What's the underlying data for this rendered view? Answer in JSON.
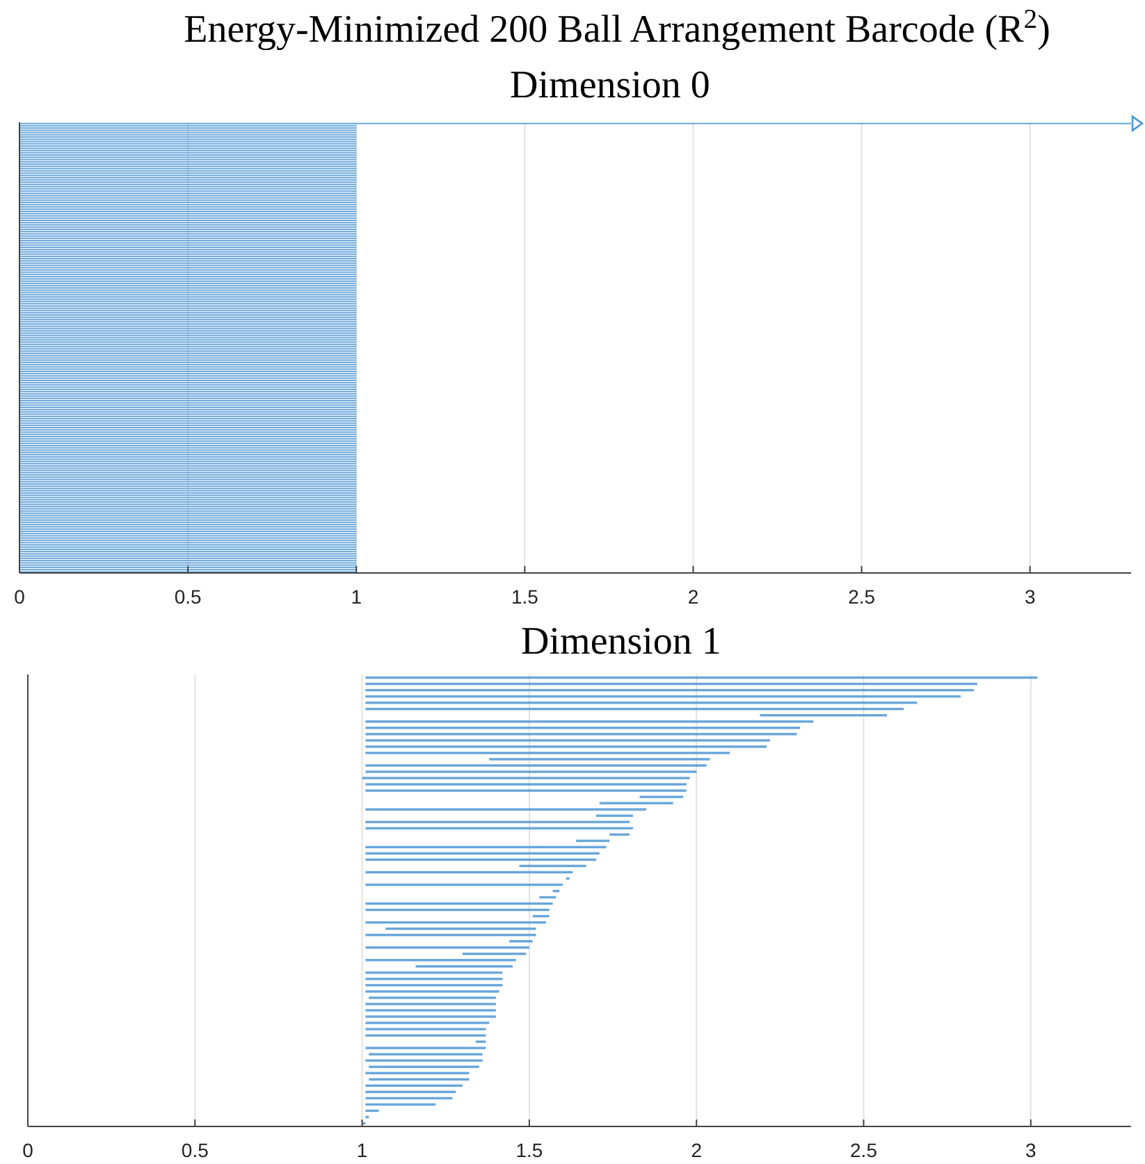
{
  "chart_data": [
    {
      "type": "bar",
      "orientation": "horizontal",
      "title": "Energy-Minimized 200 Ball Arrangement Barcode (R$^{2}$)",
      "subtitle": "Dimension 0",
      "color": "#4f97d4",
      "xlim": [
        0,
        3.3
      ],
      "xticks": [
        0,
        0.5,
        1,
        1.5,
        2,
        2.5,
        3
      ],
      "grid": "x",
      "tick_labels": "x",
      "categories": [
        null,
        null,
        null,
        null,
        null,
        null,
        null,
        null,
        null,
        null,
        null,
        null,
        null,
        null,
        null,
        null,
        null,
        null,
        null,
        null,
        null,
        null,
        null,
        null,
        null,
        null,
        null,
        null,
        null,
        null,
        null,
        null,
        null,
        null,
        null,
        null,
        null,
        null,
        null,
        null,
        null,
        null,
        null,
        null,
        null,
        null,
        null,
        null,
        null,
        null,
        null,
        null,
        null,
        null,
        null,
        null,
        null,
        null,
        null,
        null,
        null,
        null,
        null,
        null,
        null,
        null,
        null,
        null,
        null,
        null,
        null,
        null,
        null,
        null,
        null,
        null,
        null,
        null,
        null,
        null,
        null,
        null,
        null,
        null,
        null,
        null,
        null,
        null,
        null,
        null,
        null,
        null,
        null,
        null,
        null,
        null,
        null,
        null,
        null,
        null,
        null,
        null,
        null,
        null,
        null,
        null,
        null,
        null,
        null,
        null,
        null,
        null,
        null,
        null,
        null,
        null,
        null,
        null,
        null,
        null,
        null,
        null,
        null,
        null,
        null,
        null,
        null,
        null,
        null,
        null,
        null,
        null,
        null,
        null,
        null,
        null,
        null,
        null,
        null,
        null,
        null,
        null,
        null,
        null,
        null,
        null,
        null,
        null,
        null,
        null,
        null,
        null,
        null,
        null,
        null,
        null,
        null,
        null,
        null,
        null,
        null,
        null,
        null,
        null,
        null,
        null,
        null,
        null,
        null,
        null,
        null,
        null,
        null,
        null,
        null,
        null,
        null,
        null,
        null,
        null,
        null,
        null,
        null,
        null,
        null,
        null,
        null,
        null,
        null,
        null,
        null,
        null,
        null,
        null,
        null,
        null,
        null,
        null,
        null,
        null
      ],
      "values": [
        3.3,
        1,
        1,
        1,
        1,
        1,
        1,
        1,
        1,
        1,
        1,
        1,
        1,
        1,
        1,
        1,
        1,
        1,
        1,
        1,
        1,
        1,
        1,
        1,
        1,
        1,
        1,
        1,
        1,
        1,
        1,
        1,
        1,
        1,
        1,
        1,
        1,
        1,
        1,
        1,
        1,
        1,
        1,
        1,
        1,
        1,
        1,
        1,
        1,
        1,
        1,
        1,
        1,
        1,
        1,
        1,
        1,
        1,
        1,
        1,
        1,
        1,
        1,
        1,
        1,
        1,
        1,
        1,
        1,
        1,
        1,
        1,
        1,
        1,
        1,
        1,
        1,
        1,
        1,
        1,
        1,
        1,
        1,
        1,
        1,
        1,
        1,
        1,
        1,
        1,
        1,
        1,
        1,
        1,
        1,
        1,
        1,
        1,
        1,
        1,
        1,
        1,
        1,
        1,
        1,
        1,
        1,
        1,
        1,
        1,
        1,
        1,
        1,
        1,
        1,
        1,
        1,
        1,
        1,
        1,
        1,
        1,
        1,
        1,
        1,
        1,
        1,
        1,
        1,
        1,
        1,
        1,
        1,
        1,
        1,
        1,
        1,
        1,
        1,
        1,
        1,
        1,
        1,
        1,
        1,
        1,
        1,
        1,
        1,
        1,
        1,
        1,
        1,
        1,
        1,
        1,
        1,
        1,
        1,
        1,
        1,
        1,
        1,
        1,
        1,
        1,
        1,
        1,
        1,
        1,
        1,
        1,
        1,
        1,
        1,
        1,
        1,
        1,
        1,
        1,
        1,
        1,
        1,
        1,
        1,
        1,
        1,
        1,
        1,
        1,
        1,
        1,
        1,
        1,
        1,
        1,
        1,
        1,
        1,
        1
      ]
    },
    {
      "type": "bar",
      "orientation": "horizontal",
      "title": "Dimension 1",
      "color": "#4f97d4",
      "xlim": [
        0,
        3.3
      ],
      "xticks": [
        0,
        0.5,
        1,
        1.5,
        2,
        2.5,
        3
      ],
      "grid": "x",
      "tick_labels": "x",
      "categories": [
        null,
        null,
        null,
        null,
        null,
        null,
        null,
        null,
        null,
        null,
        null,
        null,
        null,
        null,
        null,
        null,
        null,
        null,
        null,
        null,
        null,
        null,
        null,
        null,
        null,
        null,
        null,
        null,
        null,
        null,
        null,
        null,
        null,
        null,
        null,
        null,
        null,
        null,
        null,
        null,
        null,
        null,
        null,
        null,
        null,
        null,
        null,
        null,
        null,
        null,
        null,
        null,
        null,
        null,
        null,
        null,
        null,
        null,
        null,
        null,
        null,
        null,
        null,
        null,
        null,
        null,
        null,
        null,
        null,
        null,
        null,
        null
      ],
      "base": [
        1.01,
        1.01,
        1.01,
        1.01,
        1.01,
        1.01,
        2.19,
        1.01,
        1.01,
        1.01,
        1.01,
        1.01,
        1.01,
        1.38,
        1.01,
        1.01,
        1.0,
        1.01,
        1.01,
        1.83,
        1.71,
        1.01,
        1.7,
        1.01,
        1.01,
        1.74,
        1.64,
        1.01,
        1.01,
        1.01,
        1.47,
        1.01,
        1.61,
        1.01,
        1.57,
        1.53,
        1.01,
        1.01,
        1.51,
        1.01,
        1.07,
        1.01,
        1.44,
        1.01,
        1.3,
        1.01,
        1.16,
        1.01,
        1.01,
        1.01,
        1.01,
        1.02,
        1.01,
        1.01,
        1.01,
        1.01,
        1.01,
        1.01,
        1.34,
        1.01,
        1.02,
        1.01,
        1.02,
        1.01,
        1.02,
        1.01,
        1.01,
        1.01,
        1.01,
        1.01,
        1.01,
        1.0
      ],
      "values": [
        2.01,
        1.83,
        1.82,
        1.78,
        1.65,
        1.61,
        0.38,
        1.34,
        1.3,
        1.29,
        1.21,
        1.2,
        1.09,
        0.66,
        1.02,
        0.99,
        0.98,
        0.96,
        0.96,
        0.13,
        0.22,
        0.84,
        0.11,
        0.79,
        0.8,
        0.06,
        0.1,
        0.72,
        0.7,
        0.69,
        0.2,
        0.62,
        0.01,
        0.59,
        0.02,
        0.05,
        0.56,
        0.55,
        0.05,
        0.54,
        0.45,
        0.51,
        0.07,
        0.49,
        0.19,
        0.45,
        0.29,
        0.41,
        0.41,
        0.41,
        0.4,
        0.38,
        0.39,
        0.39,
        0.39,
        0.37,
        0.36,
        0.36,
        0.03,
        0.36,
        0.34,
        0.35,
        0.33,
        0.31,
        0.3,
        0.29,
        0.27,
        0.26,
        0.21,
        0.04,
        0.01,
        0.01
      ]
    }
  ]
}
